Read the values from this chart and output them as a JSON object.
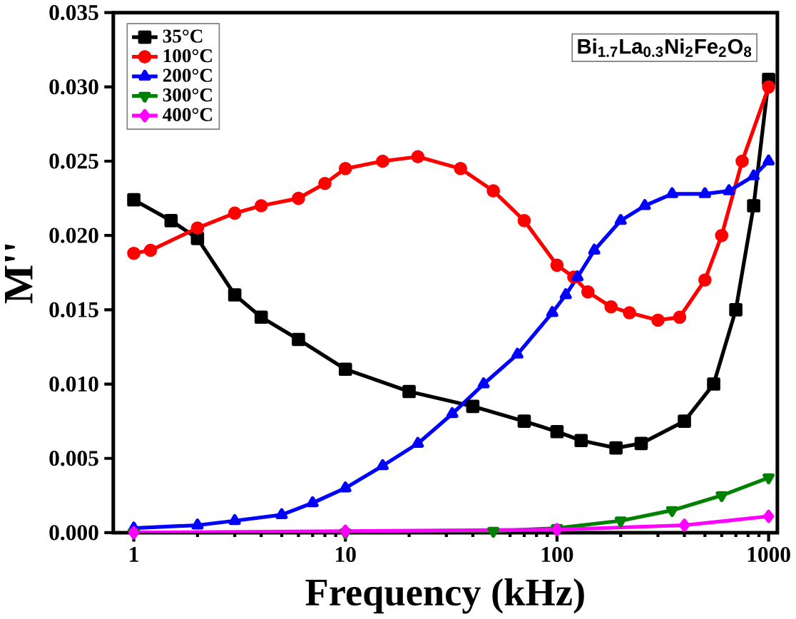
{
  "chart_data": {
    "type": "line",
    "xlabel": "Frequency (kHz)",
    "ylabel": "M''",
    "annotations": [
      "Bi$_{1.7}$La$_{0.3}$Ni$_{2}$Fe$_{2}$O$_{8}$"
    ],
    "log": "x",
    "xlim": [
      0.8,
      1100
    ],
    "xticks": [
      1,
      10,
      100,
      1000
    ],
    "ylim": [
      0,
      0.035
    ],
    "yticks": [
      {
        "value": 0,
        "label": "0.000"
      },
      {
        "value": 0.005,
        "label": "0.005"
      },
      {
        "value": 0.01,
        "label": "0.010"
      },
      {
        "value": 0.015,
        "label": "0.015"
      },
      {
        "value": 0.02,
        "label": "0.020"
      },
      {
        "value": 0.025,
        "label": "0.025"
      },
      {
        "value": 0.03,
        "label": "0.030"
      },
      {
        "value": 0.035,
        "label": "0.035"
      }
    ],
    "legend": "top left",
    "grid": false,
    "series": [
      {
        "name": "35°C",
        "color": "#000000",
        "marker": "square",
        "x": [
          1,
          1.5,
          2,
          3,
          4,
          6,
          10,
          20,
          40,
          70,
          100,
          130,
          190,
          250,
          400,
          550,
          700,
          850,
          1000
        ],
        "values": [
          0.0224,
          0.021,
          0.0198,
          0.016,
          0.0145,
          0.013,
          0.011,
          0.0095,
          0.0085,
          0.0075,
          0.0068,
          0.0062,
          0.0057,
          0.006,
          0.0075,
          0.01,
          0.015,
          0.022,
          0.0305
        ]
      },
      {
        "name": "100°C",
        "color": "#ff0000",
        "marker": "circle",
        "x": [
          1,
          1.2,
          2,
          3,
          4,
          6,
          8,
          10,
          15,
          22,
          35,
          50,
          70,
          100,
          120,
          140,
          180,
          220,
          300,
          380,
          500,
          600,
          750,
          1000
        ],
        "values": [
          0.0188,
          0.019,
          0.0205,
          0.0215,
          0.022,
          0.0225,
          0.0235,
          0.0245,
          0.025,
          0.0253,
          0.0245,
          0.023,
          0.021,
          0.018,
          0.0172,
          0.0162,
          0.0152,
          0.0148,
          0.0143,
          0.0145,
          0.017,
          0.02,
          0.025,
          0.03
        ]
      },
      {
        "name": "200°C",
        "color": "#0000ff",
        "marker": "triangle",
        "x": [
          1,
          2,
          3,
          5,
          7,
          10,
          15,
          22,
          32,
          45,
          65,
          95,
          110,
          125,
          150,
          200,
          260,
          350,
          500,
          650,
          850,
          1000
        ],
        "values": [
          0.0003,
          0.0005,
          0.0008,
          0.0012,
          0.002,
          0.003,
          0.0045,
          0.006,
          0.008,
          0.01,
          0.012,
          0.0148,
          0.016,
          0.0172,
          0.019,
          0.021,
          0.022,
          0.0228,
          0.0228,
          0.023,
          0.024,
          0.025
        ]
      },
      {
        "name": "300°C",
        "color": "#008000",
        "marker": "triangle-down",
        "x": [
          1,
          10,
          50,
          100,
          200,
          350,
          600,
          1000
        ],
        "values": [
          0,
          0,
          0.0001,
          0.0003,
          0.0008,
          0.0015,
          0.0025,
          0.0037
        ]
      },
      {
        "name": "400°C",
        "color": "#ff00ff",
        "marker": "diamond",
        "x": [
          1,
          10,
          100,
          400,
          1000
        ],
        "values": [
          0,
          0.0001,
          0.0002,
          0.0005,
          0.0011
        ]
      }
    ]
  }
}
